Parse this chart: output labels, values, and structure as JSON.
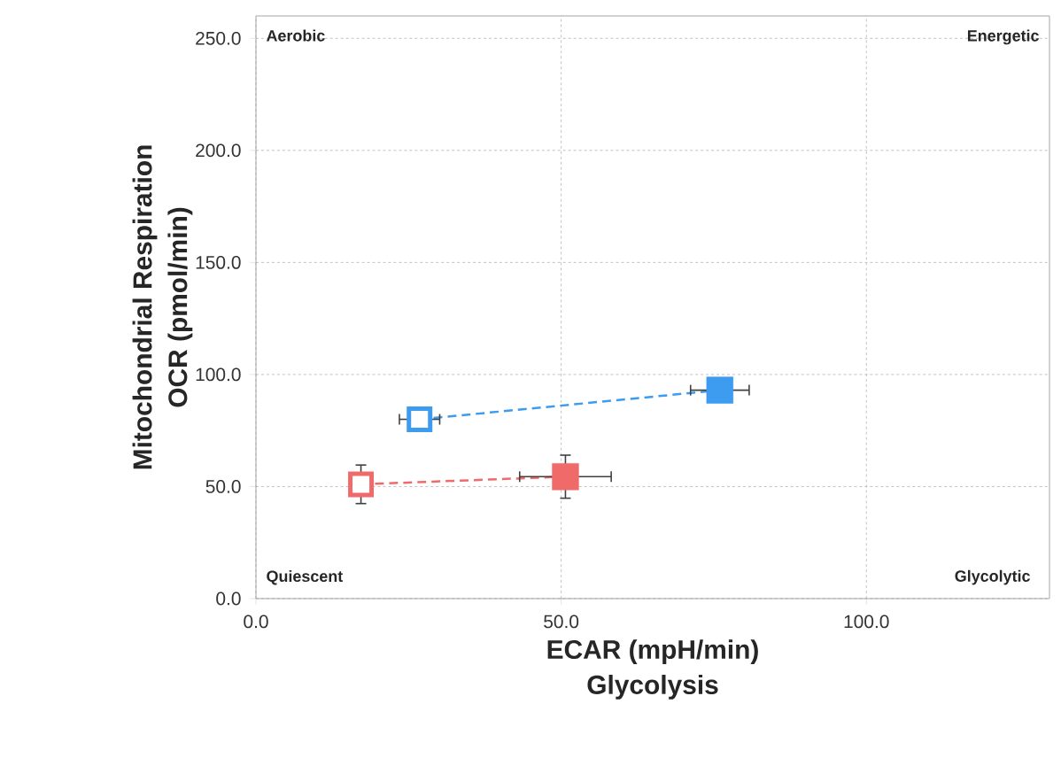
{
  "chart_data": {
    "type": "line",
    "xlabel": "ECAR (mpH/min) Glycolysis",
    "ylabel": "Mitochondrial Respiration OCR (pmol/min)",
    "xlim": [
      0,
      130
    ],
    "ylim": [
      0,
      260
    ],
    "xticks": [
      {
        "value": 0,
        "label": "0.0"
      },
      {
        "value": 50,
        "label": "50.0"
      },
      {
        "value": 100,
        "label": "100.0"
      }
    ],
    "yticks": [
      {
        "value": 0,
        "label": "0.0"
      },
      {
        "value": 50,
        "label": "50.0"
      },
      {
        "value": 100,
        "label": "100.0"
      },
      {
        "value": 150,
        "label": "150.0"
      },
      {
        "value": 200,
        "label": "200.0"
      },
      {
        "value": 250,
        "label": "250.0"
      }
    ],
    "grid": true,
    "marker": "square",
    "line_style": "dashed",
    "series": [
      {
        "color": "#3d9bf0",
        "x": [
          26.8,
          76.0
        ],
        "values": [
          80.0,
          93.0
        ],
        "xerrors": [
          3.3,
          4.8
        ],
        "errors": [
          null,
          null
        ]
      },
      {
        "color": "#f06a6a",
        "x": [
          17.2,
          50.7
        ],
        "values": [
          51.0,
          54.4
        ],
        "xerrors": [
          null,
          7.5
        ],
        "errors": [
          8.6,
          9.6
        ]
      }
    ],
    "annotations": [
      "Aerobic",
      "Energetic",
      "Quiescent",
      "Glycolytic"
    ]
  }
}
